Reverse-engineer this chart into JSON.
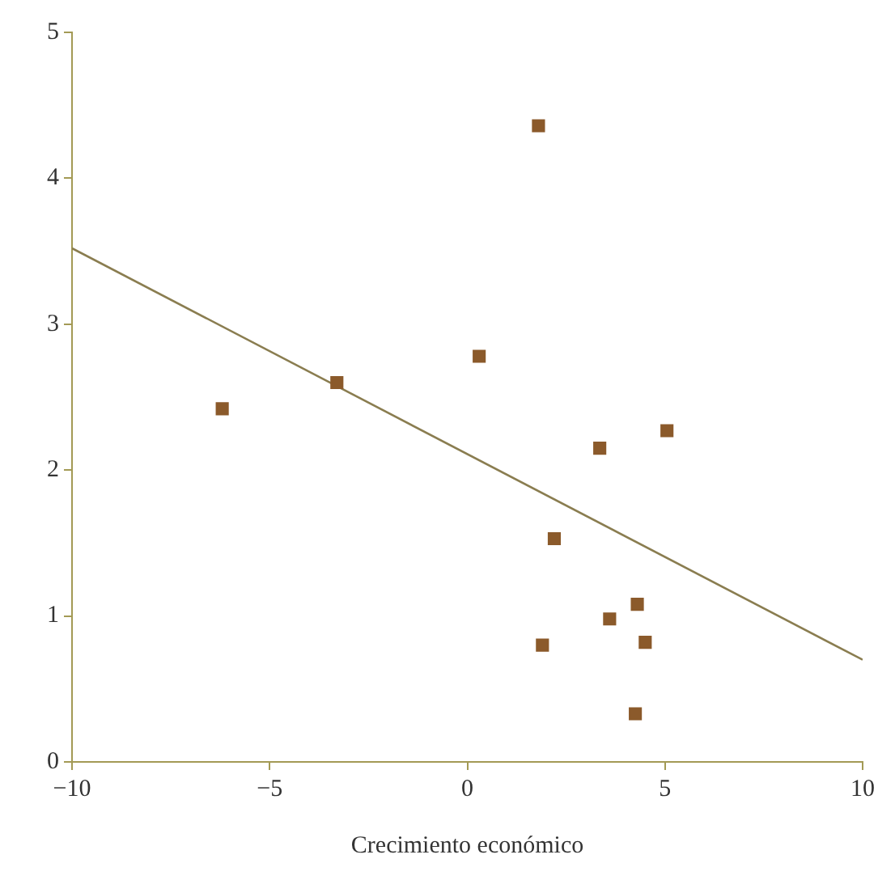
{
  "chart_data": {
    "type": "scatter",
    "xlabel": "Crecimiento económico",
    "grid": false,
    "legend": false,
    "xlim": [
      -10,
      10
    ],
    "xticks": [
      {
        "value": -10,
        "label": "−10"
      },
      {
        "value": -5,
        "label": "−5"
      },
      0,
      5,
      10
    ],
    "ylim": [
      0,
      5
    ],
    "yticks": [
      0,
      1,
      2,
      3,
      4,
      5
    ],
    "series": [
      {
        "type": "scatter",
        "marker": "square",
        "color": "#8b5a2b",
        "x": [
          -6.2,
          -3.3,
          0.3,
          1.8,
          5.05,
          3.35,
          2.2,
          4.3,
          3.6,
          1.9,
          4.5,
          4.25
        ],
        "values": [
          2.42,
          2.6,
          2.78,
          4.36,
          2.27,
          2.15,
          1.53,
          1.08,
          0.98,
          0.8,
          0.82,
          0.33
        ]
      },
      {
        "type": "line",
        "marker": "none",
        "color": "#8a7d50",
        "x": [
          -10,
          10
        ],
        "values": [
          3.52,
          0.7
        ]
      }
    ]
  }
}
